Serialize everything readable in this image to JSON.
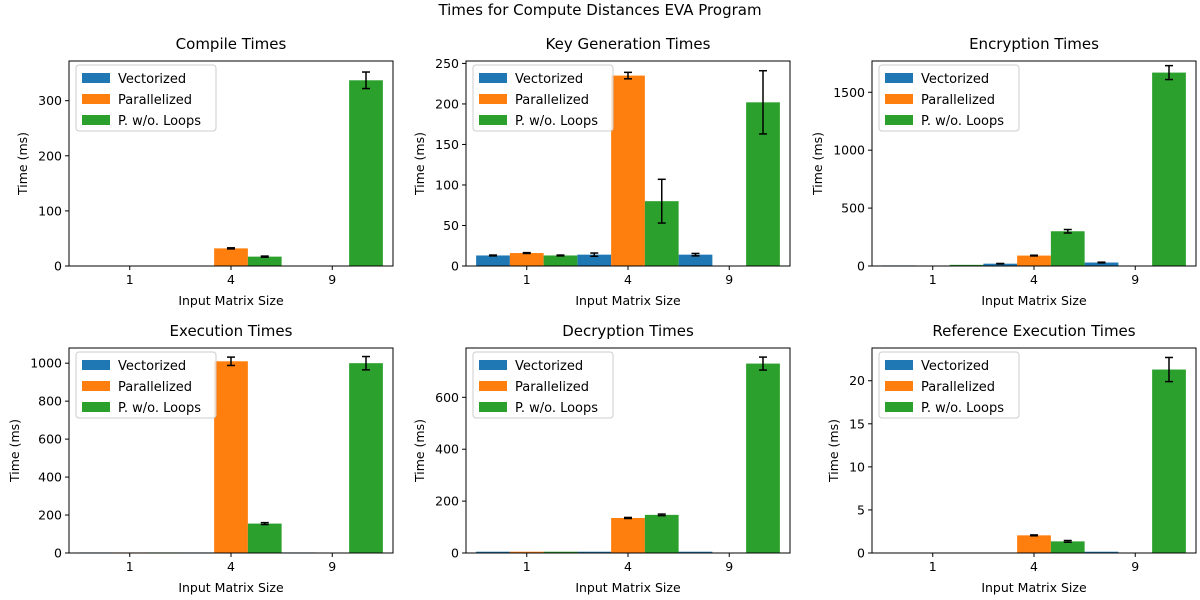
{
  "figure": {
    "title": "Times for Compute Distances EVA Program"
  },
  "colors": {
    "Vectorized": "#1f77b4",
    "Parallelized": "#ff7f0e",
    "P. w/o. Loops": "#2ca02c"
  },
  "chart_data": [
    {
      "type": "bar",
      "title": "Compile Times",
      "xlabel": "Input Matrix Size",
      "ylabel": "Time (ms)",
      "categories": [
        "1",
        "4",
        "9"
      ],
      "ylim": [
        0,
        372
      ],
      "yticks": [
        0,
        100,
        200,
        300
      ],
      "legend": "top-left",
      "series": [
        {
          "name": "Vectorized",
          "values": [
            0.5,
            0.5,
            0.5
          ],
          "errors": [
            0,
            0,
            0
          ]
        },
        {
          "name": "Parallelized",
          "values": [
            0.5,
            32,
            0
          ],
          "errors": [
            0,
            1,
            0
          ]
        },
        {
          "name": "P. w/o. Loops",
          "values": [
            0.5,
            17,
            337
          ],
          "errors": [
            0,
            1,
            15
          ]
        }
      ]
    },
    {
      "type": "bar",
      "title": "Key Generation Times",
      "xlabel": "Input Matrix Size",
      "ylabel": "Time (ms)",
      "categories": [
        "1",
        "4",
        "9"
      ],
      "ylim": [
        0,
        253
      ],
      "yticks": [
        0,
        50,
        100,
        150,
        200,
        250
      ],
      "legend": "top-left",
      "series": [
        {
          "name": "Vectorized",
          "values": [
            13,
            14,
            14
          ],
          "errors": [
            0.5,
            2,
            1.5
          ]
        },
        {
          "name": "Parallelized",
          "values": [
            16,
            235,
            0
          ],
          "errors": [
            0.5,
            4,
            0
          ]
        },
        {
          "name": "P. w/o. Loops",
          "values": [
            13,
            80,
            202
          ],
          "errors": [
            0.5,
            27,
            39
          ]
        }
      ]
    },
    {
      "type": "bar",
      "title": "Encryption Times",
      "xlabel": "Input Matrix Size",
      "ylabel": "Time (ms)",
      "categories": [
        "1",
        "4",
        "9"
      ],
      "ylim": [
        0,
        1770
      ],
      "yticks": [
        0,
        500,
        1000,
        1500
      ],
      "legend": "top-left",
      "series": [
        {
          "name": "Vectorized",
          "values": [
            5,
            20,
            30
          ],
          "errors": [
            0,
            2,
            3
          ]
        },
        {
          "name": "Parallelized",
          "values": [
            3,
            90,
            0
          ],
          "errors": [
            0,
            3,
            0
          ]
        },
        {
          "name": "P. w/o. Loops",
          "values": [
            10,
            300,
            1670
          ],
          "errors": [
            0,
            15,
            60
          ]
        }
      ]
    },
    {
      "type": "bar",
      "title": "Execution Times",
      "xlabel": "Input Matrix Size",
      "ylabel": "Time (ms)",
      "categories": [
        "1",
        "4",
        "9"
      ],
      "ylim": [
        0,
        1080
      ],
      "yticks": [
        0,
        200,
        400,
        600,
        800,
        1000
      ],
      "legend": "top-left",
      "series": [
        {
          "name": "Vectorized",
          "values": [
            3,
            3,
            3
          ],
          "errors": [
            0,
            0,
            0
          ]
        },
        {
          "name": "Parallelized",
          "values": [
            3,
            1010,
            0
          ],
          "errors": [
            0,
            22,
            0
          ]
        },
        {
          "name": "P. w/o. Loops",
          "values": [
            3,
            155,
            1000
          ],
          "errors": [
            0,
            5,
            35
          ]
        }
      ]
    },
    {
      "type": "bar",
      "title": "Decryption Times",
      "xlabel": "Input Matrix Size",
      "ylabel": "Time (ms)",
      "categories": [
        "1",
        "4",
        "9"
      ],
      "ylim": [
        0,
        790
      ],
      "yticks": [
        0,
        200,
        400,
        600
      ],
      "legend": "top-left",
      "series": [
        {
          "name": "Vectorized",
          "values": [
            5,
            5,
            5
          ],
          "errors": [
            0,
            0,
            0
          ]
        },
        {
          "name": "Parallelized",
          "values": [
            5,
            135,
            0
          ],
          "errors": [
            0,
            2,
            0
          ]
        },
        {
          "name": "P. w/o. Loops",
          "values": [
            5,
            147,
            730
          ],
          "errors": [
            0,
            3,
            25
          ]
        }
      ]
    },
    {
      "type": "bar",
      "title": "Reference Execution Times",
      "xlabel": "Input Matrix Size",
      "ylabel": "Time (ms)",
      "categories": [
        "1",
        "4",
        "9"
      ],
      "ylim": [
        0,
        23.8
      ],
      "yticks": [
        0,
        5,
        10,
        15,
        20
      ],
      "legend": "top-left",
      "series": [
        {
          "name": "Vectorized",
          "values": [
            0.05,
            0.05,
            0.15
          ],
          "errors": [
            0,
            0,
            0
          ]
        },
        {
          "name": "Parallelized",
          "values": [
            0.05,
            2.05,
            0
          ],
          "errors": [
            0,
            0.05,
            0
          ]
        },
        {
          "name": "P. w/o. Loops",
          "values": [
            0.05,
            1.35,
            21.3
          ],
          "errors": [
            0,
            0.1,
            1.4
          ]
        }
      ]
    }
  ]
}
